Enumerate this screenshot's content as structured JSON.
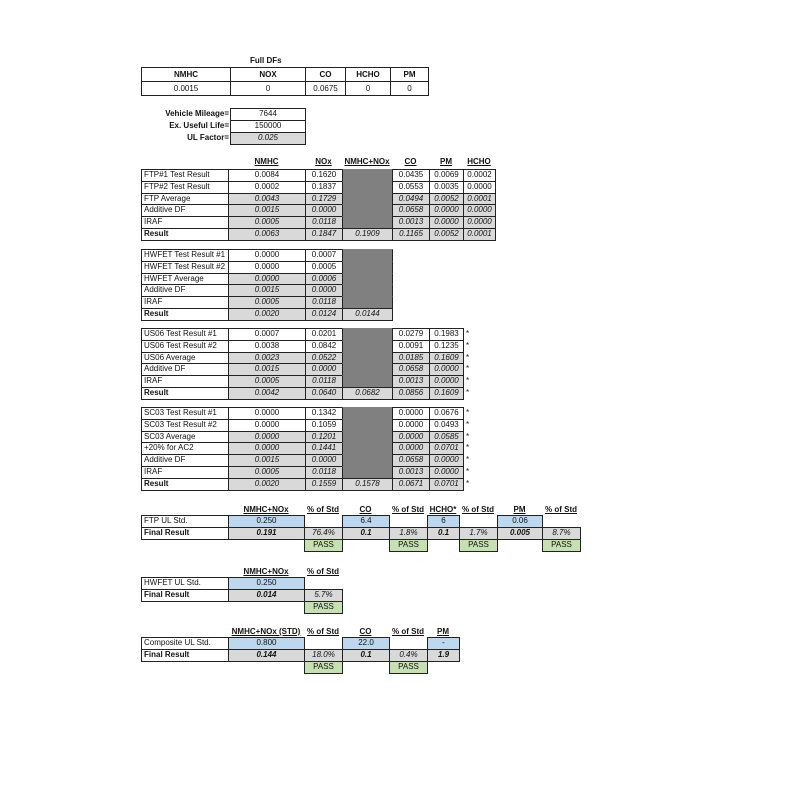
{
  "full_dfs": {
    "title": "Full DFs",
    "headers": [
      "NMHC",
      "NOX",
      "CO",
      "HCHO",
      "PM"
    ],
    "values": [
      "0.0015",
      "0",
      "0.0675",
      "0",
      "0"
    ]
  },
  "mileage": [
    {
      "label": "Vehicle Mileage=",
      "value": "7644"
    },
    {
      "label": "Ex. Useful Life=",
      "value": "150000"
    },
    {
      "label": "UL Factor=",
      "value": "0.025"
    }
  ],
  "main_headers": [
    "NMHC",
    "NOx",
    "NMHC+NOx",
    "CO",
    "PM",
    "HCHO"
  ],
  "blocks": [
    {
      "rows": [
        {
          "label": "FTP#1 Test Result",
          "values": [
            "0.0084",
            "0.1620",
            "",
            "0.0435",
            "0.0069",
            "0.0002"
          ]
        },
        {
          "label": "FTP#2 Test Result",
          "values": [
            "0.0002",
            "0.1837",
            "",
            "0.0553",
            "0.0035",
            "0.0000"
          ]
        },
        {
          "label": "FTP Average",
          "values": [
            "0.0043",
            "0.1729",
            "",
            "0.0494",
            "0.0052",
            "0.0001"
          ]
        },
        {
          "label": "Additive DF",
          "values": [
            "0.0015",
            "0.0000",
            "",
            "0.0658",
            "0.0000",
            "0.0000"
          ]
        },
        {
          "label": "IRAF",
          "values": [
            "0.0005",
            "0.0118",
            "",
            "0.0013",
            "0.0000",
            "0.0000"
          ]
        },
        {
          "label": "Result",
          "values": [
            "0.0063",
            "0.1847",
            "0.1909",
            "0.1165",
            "0.0052",
            "0.0001"
          ]
        }
      ]
    },
    {
      "rows": [
        {
          "label": "HWFET Test Result #1",
          "values": [
            "0.0000",
            "0.0007",
            ""
          ]
        },
        {
          "label": "HWFET Test Result #2",
          "values": [
            "0.0000",
            "0.0005",
            ""
          ]
        },
        {
          "label": "HWFET Average",
          "values": [
            "0.0000",
            "0.0006",
            ""
          ]
        },
        {
          "label": "Additive DF",
          "values": [
            "0.0015",
            "0.0000",
            ""
          ]
        },
        {
          "label": "IRAF",
          "values": [
            "0.0005",
            "0.0118",
            ""
          ]
        },
        {
          "label": "Result",
          "values": [
            "0.0020",
            "0.0124",
            "0.0144"
          ]
        }
      ]
    },
    {
      "rows": [
        {
          "label": "US06 Test Result #1",
          "values": [
            "0.0007",
            "0.0201",
            "",
            "0.0279",
            "0.1983"
          ],
          "note": "*"
        },
        {
          "label": "US06 Test Result #2",
          "values": [
            "0.0038",
            "0.0842",
            "",
            "0.0091",
            "0.1235"
          ],
          "note": "*"
        },
        {
          "label": "US06 Average",
          "values": [
            "0.0023",
            "0.0522",
            "",
            "0.0185",
            "0.1609"
          ],
          "note": "*"
        },
        {
          "label": "Additive DF",
          "values": [
            "0.0015",
            "0.0000",
            "",
            "0.0658",
            "0.0000"
          ],
          "note": "*"
        },
        {
          "label": "IRAF",
          "values": [
            "0.0005",
            "0.0118",
            "",
            "0.0013",
            "0.0000"
          ],
          "note": "*"
        },
        {
          "label": "Result",
          "values": [
            "0.0042",
            "0.0640",
            "0.0682",
            "0.0856",
            "0.1609"
          ],
          "note": "*"
        }
      ]
    },
    {
      "rows": [
        {
          "label": "SC03 Test Result #1",
          "values": [
            "0.0000",
            "0.1342",
            "",
            "0.0000",
            "0.0676"
          ],
          "note": "*"
        },
        {
          "label": "SC03 Test Result #2",
          "values": [
            "0.0000",
            "0.1059",
            "",
            "0.0000",
            "0.0493"
          ],
          "note": "*"
        },
        {
          "label": "SC03 Average",
          "values": [
            "0.0000",
            "0.1201",
            "",
            "0.0000",
            "0.0585"
          ],
          "note": "*"
        },
        {
          "label": "+20% for AC2",
          "values": [
            "0.0000",
            "0.1441",
            "",
            "0.0000",
            "0.0701"
          ],
          "note": "*"
        },
        {
          "label": "Additive DF",
          "values": [
            "0.0015",
            "0.0000",
            "",
            "0.0658",
            "0.0000"
          ],
          "note": "*"
        },
        {
          "label": "IRAF",
          "values": [
            "0.0005",
            "0.0118",
            "",
            "0.0013",
            "0.0000"
          ],
          "note": "*"
        },
        {
          "label": "Result",
          "values": [
            "0.0020",
            "0.1559",
            "0.1578",
            "0.0671",
            "0.0701"
          ],
          "note": "*"
        }
      ]
    }
  ],
  "summaries": [
    {
      "headers": [
        "NMHC+NOx",
        "% of Std",
        "CO",
        "% of Std",
        "HCHO*",
        "% of Std",
        "PM",
        "% of Std"
      ],
      "std_label": "FTP UL Std.",
      "std": [
        "0.250",
        "",
        "6.4",
        "",
        "6",
        "",
        "0.06",
        ""
      ],
      "final_label": "Final Result",
      "final": [
        "0.191",
        "76.4%",
        "0.1",
        "1.8%",
        "0.1",
        "1.7%",
        "0.005",
        "8.7%"
      ],
      "status": [
        "",
        "PASS",
        "",
        "PASS",
        "",
        "PASS",
        "",
        "PASS"
      ]
    },
    {
      "headers": [
        "NMHC+NOx",
        "% of Std"
      ],
      "std_label": "HWFET UL Std.",
      "std": [
        "0.250",
        ""
      ],
      "final_label": "Final Result",
      "final": [
        "0.014",
        "5.7%"
      ],
      "status": [
        "",
        "PASS"
      ]
    },
    {
      "headers": [
        "NMHC+NOx (STD)",
        "% of Std",
        "CO",
        "% of Std",
        "PM"
      ],
      "std_label": "Composite UL Std.",
      "std": [
        "0.800",
        "",
        "22.0",
        "",
        "-"
      ],
      "final_label": "Final Result",
      "final": [
        "0.144",
        "18.0%",
        "0.1",
        "0.4%",
        "1.9"
      ],
      "status": [
        "",
        "PASS",
        "",
        "PASS",
        ""
      ]
    }
  ],
  "colors": {
    "calc": "#d9d9d9",
    "blank": "#808080",
    "std": "#bdd7ee",
    "pass": "#c6e0b4"
  }
}
